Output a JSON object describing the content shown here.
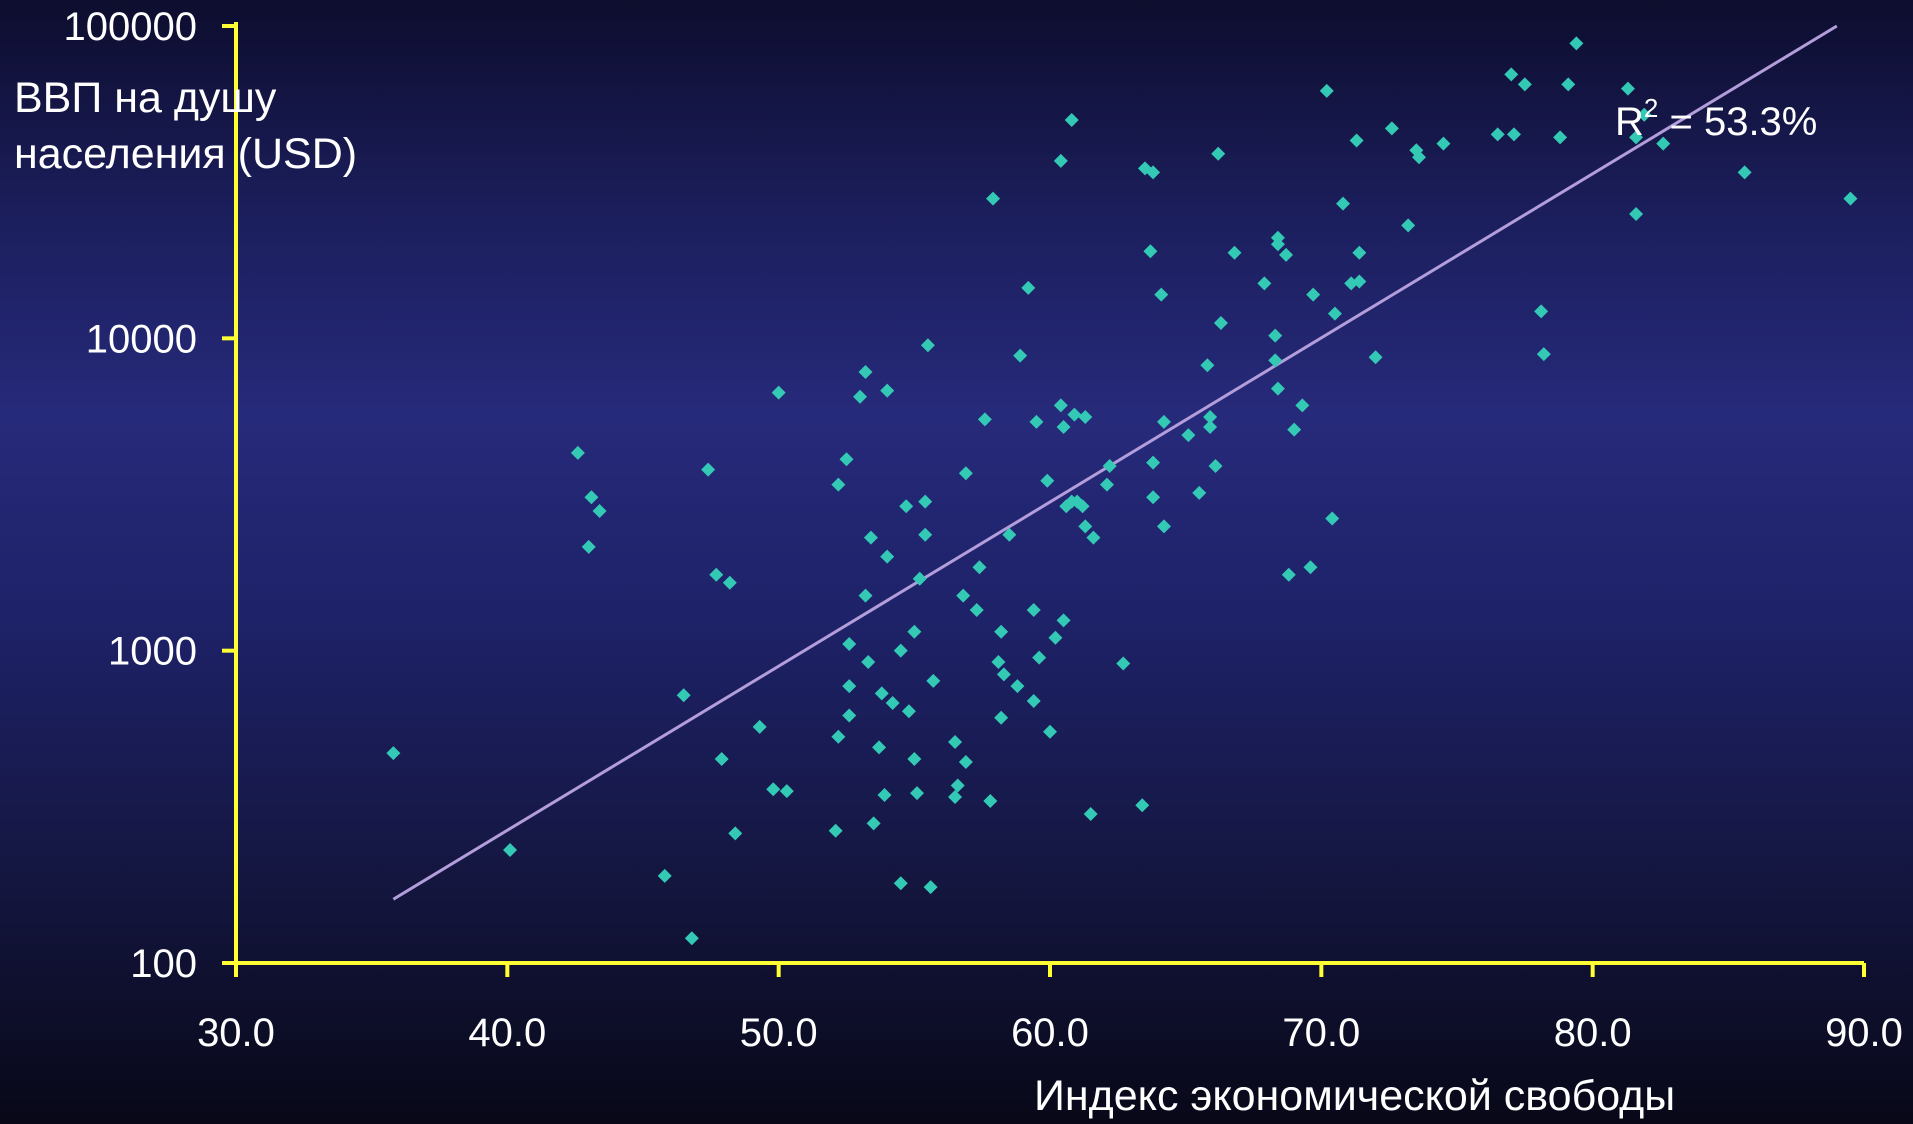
{
  "chart_data": {
    "type": "scatter",
    "xlabel": "Индекс экономической свободы",
    "ylabel": "ВВП на душу населения (USD)",
    "xlim": [
      30,
      90
    ],
    "ylim": [
      100,
      100000
    ],
    "yscale": "log",
    "x_ticks": [
      30,
      40,
      50,
      60,
      70,
      80,
      90
    ],
    "x_tick_labels": [
      "30.0",
      "40.0",
      "50.0",
      "60.0",
      "70.0",
      "80.0",
      "90.0"
    ],
    "y_ticks": [
      100,
      1000,
      10000,
      100000
    ],
    "y_tick_labels": [
      "100",
      "1000",
      "10000",
      "100000"
    ],
    "grid": false,
    "annotation": {
      "prefix": "R",
      "sup": "2",
      "suffix": " = 53.3%"
    },
    "trendline": {
      "x": [
        35.8,
        89.0
      ],
      "y": [
        160,
        100000
      ]
    },
    "colors": {
      "points": "#33c9b5",
      "trendline": "#b39ddb",
      "axes": "#ffff33",
      "text": "#ffffff"
    },
    "points": [
      [
        35.8,
        470
      ],
      [
        40.1,
        230
      ],
      [
        42.6,
        4300
      ],
      [
        43.1,
        3100
      ],
      [
        43.4,
        2800
      ],
      [
        43.0,
        2150
      ],
      [
        45.8,
        190
      ],
      [
        46.5,
        720
      ],
      [
        46.8,
        120
      ],
      [
        47.4,
        3800
      ],
      [
        47.7,
        1750
      ],
      [
        47.9,
        450
      ],
      [
        48.2,
        1650
      ],
      [
        48.4,
        260
      ],
      [
        49.3,
        570
      ],
      [
        49.8,
        360
      ],
      [
        50.0,
        6700
      ],
      [
        50.3,
        355
      ],
      [
        52.1,
        265
      ],
      [
        52.2,
        530
      ],
      [
        52.2,
        3400
      ],
      [
        52.5,
        4100
      ],
      [
        52.6,
        620
      ],
      [
        52.6,
        1050
      ],
      [
        52.6,
        770
      ],
      [
        53.0,
        6500
      ],
      [
        53.2,
        7800
      ],
      [
        53.2,
        1500
      ],
      [
        53.3,
        920
      ],
      [
        53.4,
        2300
      ],
      [
        53.5,
        280
      ],
      [
        53.7,
        490
      ],
      [
        53.8,
        730
      ],
      [
        53.9,
        345
      ],
      [
        54.0,
        6800
      ],
      [
        54.0,
        2000
      ],
      [
        54.2,
        680
      ],
      [
        54.5,
        1000
      ],
      [
        54.5,
        180
      ],
      [
        54.7,
        2900
      ],
      [
        54.8,
        640
      ],
      [
        55.0,
        450
      ],
      [
        55.0,
        1150
      ],
      [
        55.1,
        350
      ],
      [
        55.2,
        1700
      ],
      [
        55.4,
        3000
      ],
      [
        55.5,
        9500
      ],
      [
        55.4,
        2350
      ],
      [
        55.6,
        175
      ],
      [
        55.7,
        800
      ],
      [
        56.5,
        510
      ],
      [
        56.5,
        340
      ],
      [
        56.6,
        370
      ],
      [
        56.8,
        1500
      ],
      [
        56.9,
        440
      ],
      [
        56.9,
        3700
      ],
      [
        57.3,
        1350
      ],
      [
        57.4,
        1850
      ],
      [
        57.6,
        5500
      ],
      [
        57.8,
        330
      ],
      [
        57.9,
        28000
      ],
      [
        58.1,
        920
      ],
      [
        58.2,
        1150
      ],
      [
        58.2,
        610
      ],
      [
        58.3,
        840
      ],
      [
        58.5,
        2350
      ],
      [
        58.8,
        770
      ],
      [
        58.9,
        8800
      ],
      [
        59.2,
        14500
      ],
      [
        59.4,
        1350
      ],
      [
        59.5,
        5400
      ],
      [
        59.4,
        690
      ],
      [
        59.6,
        950
      ],
      [
        59.9,
        3500
      ],
      [
        60.0,
        550
      ],
      [
        60.2,
        1100
      ],
      [
        60.4,
        37000
      ],
      [
        60.4,
        6100
      ],
      [
        60.5,
        5200
      ],
      [
        60.5,
        1250
      ],
      [
        60.6,
        2900
      ],
      [
        60.8,
        50000
      ],
      [
        60.8,
        3000
      ],
      [
        60.9,
        5700
      ],
      [
        61.0,
        3000
      ],
      [
        61.2,
        2900
      ],
      [
        61.3,
        5600
      ],
      [
        61.3,
        2500
      ],
      [
        61.5,
        300
      ],
      [
        61.6,
        2300
      ],
      [
        62.1,
        3400
      ],
      [
        62.2,
        3900
      ],
      [
        62.7,
        910
      ],
      [
        63.4,
        320
      ],
      [
        63.5,
        35000
      ],
      [
        63.8,
        34000
      ],
      [
        63.7,
        19000
      ],
      [
        63.8,
        4000
      ],
      [
        63.8,
        3100
      ],
      [
        64.1,
        13800
      ],
      [
        64.2,
        5400
      ],
      [
        64.2,
        2500
      ],
      [
        65.1,
        4900
      ],
      [
        65.5,
        3200
      ],
      [
        65.8,
        8200
      ],
      [
        65.9,
        5600
      ],
      [
        65.9,
        5200
      ],
      [
        66.1,
        3900
      ],
      [
        66.2,
        39000
      ],
      [
        66.3,
        11200
      ],
      [
        66.8,
        18800
      ],
      [
        67.9,
        15000
      ],
      [
        68.3,
        10200
      ],
      [
        68.3,
        8500
      ],
      [
        68.4,
        21000
      ],
      [
        68.4,
        20000
      ],
      [
        68.4,
        6900
      ],
      [
        68.7,
        18500
      ],
      [
        68.8,
        1750
      ],
      [
        69.0,
        5100
      ],
      [
        69.3,
        6100
      ],
      [
        69.6,
        1850
      ],
      [
        69.7,
        13800
      ],
      [
        70.2,
        62000
      ],
      [
        70.4,
        2650
      ],
      [
        70.5,
        12000
      ],
      [
        70.8,
        27000
      ],
      [
        71.1,
        15000
      ],
      [
        71.3,
        43000
      ],
      [
        71.4,
        18800
      ],
      [
        71.4,
        15200
      ],
      [
        72.0,
        8700
      ],
      [
        72.6,
        47000
      ],
      [
        73.2,
        23000
      ],
      [
        73.5,
        40000
      ],
      [
        73.6,
        38000
      ],
      [
        74.5,
        42000
      ],
      [
        76.5,
        45000
      ],
      [
        77.0,
        70000
      ],
      [
        77.1,
        45000
      ],
      [
        77.5,
        65000
      ],
      [
        78.1,
        12200
      ],
      [
        78.2,
        8900
      ],
      [
        78.8,
        44000
      ],
      [
        79.1,
        65000
      ],
      [
        79.4,
        88000
      ],
      [
        81.3,
        63000
      ],
      [
        81.6,
        25000
      ],
      [
        81.6,
        44000
      ],
      [
        81.9,
        52000
      ],
      [
        82.6,
        42000
      ],
      [
        85.6,
        34000
      ],
      [
        89.5,
        28000
      ]
    ]
  }
}
